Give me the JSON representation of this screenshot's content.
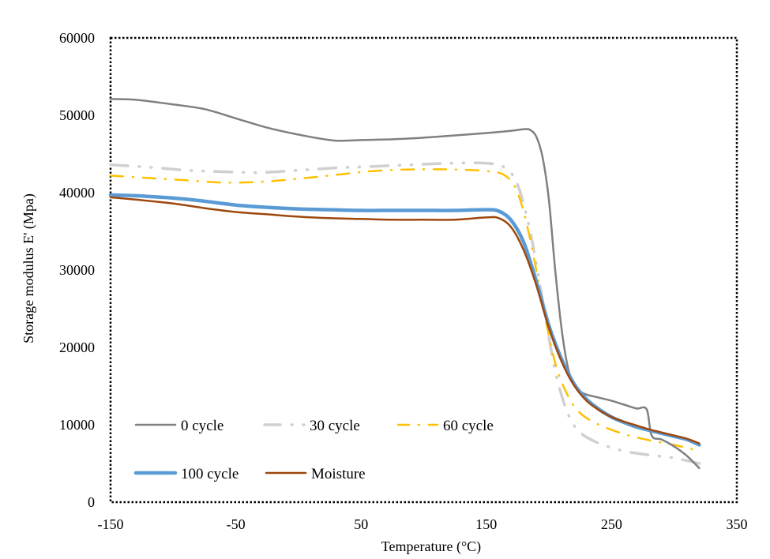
{
  "chart_data": {
    "type": "line",
    "title": "",
    "xlabel": "Temperature (°C)",
    "ylabel": "Storage modulus E' (Mpa)",
    "xlim": [
      -150,
      350
    ],
    "ylim": [
      0,
      60000
    ],
    "xticks": [
      -150,
      -50,
      50,
      150,
      250,
      350
    ],
    "yticks": [
      0,
      10000,
      20000,
      30000,
      40000,
      50000,
      60000
    ],
    "xtick_labels": [
      "-150",
      "-50",
      "50",
      "150",
      "250",
      "350"
    ],
    "ytick_labels": [
      "0",
      "10000",
      "20000",
      "30000",
      "40000",
      "50000",
      "60000"
    ],
    "grid": false,
    "legend_position": "bottom-left (inside plot)",
    "series": [
      {
        "name": "0 cycle",
        "color": "#808080",
        "style": "solid",
        "x": [
          -150,
          -130,
          -100,
          -75,
          -50,
          -25,
          0,
          25,
          35,
          50,
          75,
          100,
          125,
          150,
          170,
          180,
          185,
          190,
          195,
          200,
          205,
          210,
          215,
          220,
          225,
          230,
          240,
          250,
          260,
          270,
          278,
          282,
          290,
          300,
          310,
          320
        ],
        "y": [
          52100,
          52000,
          51400,
          50800,
          49600,
          48400,
          47500,
          46800,
          46700,
          46800,
          46900,
          47100,
          47400,
          47700,
          48000,
          48200,
          48100,
          47200,
          44500,
          39000,
          30000,
          22500,
          17500,
          15200,
          14300,
          13900,
          13500,
          13100,
          12600,
          12100,
          12000,
          8600,
          8100,
          7200,
          6000,
          4400
        ]
      },
      {
        "name": "30 cycle",
        "color": "#D0D0D0",
        "style": "long-dash-dot-dot",
        "x": [
          -150,
          -120,
          -90,
          -60,
          -30,
          0,
          30,
          60,
          90,
          120,
          150,
          165,
          175,
          185,
          195,
          205,
          215,
          225,
          240,
          260,
          280,
          300,
          320
        ],
        "y": [
          43600,
          43300,
          42900,
          42700,
          42600,
          42900,
          43200,
          43400,
          43600,
          43800,
          43800,
          43200,
          41000,
          35000,
          26000,
          17000,
          11500,
          9000,
          7600,
          6600,
          6100,
          5700,
          5000
        ]
      },
      {
        "name": "60 cycle",
        "color": "#FFC000",
        "style": "long-dash-dot",
        "x": [
          -150,
          -120,
          -90,
          -60,
          -30,
          0,
          30,
          60,
          90,
          120,
          150,
          165,
          175,
          185,
          195,
          205,
          215,
          225,
          240,
          260,
          280,
          300,
          320
        ],
        "y": [
          42200,
          41900,
          41600,
          41300,
          41400,
          41800,
          42300,
          42800,
          43000,
          43000,
          42800,
          42200,
          40000,
          34000,
          25500,
          18000,
          13800,
          11500,
          10000,
          8800,
          8000,
          7400,
          6600
        ]
      },
      {
        "name": "100 cycle",
        "color": "#5B9BD5",
        "style": "solid-thick",
        "x": [
          -150,
          -130,
          -100,
          -75,
          -50,
          -25,
          0,
          25,
          50,
          75,
          100,
          125,
          150,
          160,
          170,
          180,
          190,
          200,
          210,
          220,
          230,
          240,
          250,
          260,
          270,
          280,
          290,
          300,
          310,
          320
        ],
        "y": [
          39700,
          39600,
          39300,
          38900,
          38400,
          38100,
          37900,
          37800,
          37700,
          37700,
          37700,
          37700,
          37800,
          37600,
          36400,
          33500,
          28500,
          22800,
          18500,
          15300,
          13300,
          12000,
          11000,
          10300,
          9700,
          9300,
          8900,
          8500,
          8100,
          7400
        ]
      },
      {
        "name": "Moisture",
        "color": "#9E480E",
        "style": "solid",
        "x": [
          -150,
          -130,
          -100,
          -75,
          -50,
          -25,
          0,
          25,
          50,
          75,
          100,
          125,
          150,
          160,
          170,
          180,
          190,
          200,
          210,
          220,
          230,
          240,
          250,
          260,
          270,
          280,
          290,
          300,
          310,
          320
        ],
        "y": [
          39400,
          39100,
          38600,
          38000,
          37500,
          37200,
          36900,
          36700,
          36600,
          36500,
          36500,
          36500,
          36800,
          36700,
          35500,
          32500,
          28000,
          22500,
          18200,
          15100,
          13100,
          11900,
          11000,
          10400,
          9900,
          9400,
          9000,
          8600,
          8200,
          7600
        ]
      }
    ]
  }
}
